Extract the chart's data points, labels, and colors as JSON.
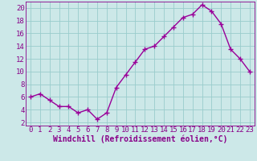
{
  "x": [
    0,
    1,
    2,
    3,
    4,
    5,
    6,
    7,
    8,
    9,
    10,
    11,
    12,
    13,
    14,
    15,
    16,
    17,
    18,
    19,
    20,
    21,
    22,
    23
  ],
  "y": [
    6.0,
    6.5,
    5.5,
    4.5,
    4.5,
    3.5,
    4.0,
    2.5,
    3.5,
    7.5,
    9.5,
    11.5,
    13.5,
    14.0,
    15.5,
    17.0,
    18.5,
    19.0,
    20.5,
    19.5,
    17.5,
    13.5,
    12.0,
    10.0
  ],
  "line_color": "#990099",
  "marker": "+",
  "background_color": "#cce8e8",
  "grid_color": "#99cccc",
  "xlabel": "Windchill (Refroidissement éolien,°C)",
  "ylim": [
    1.5,
    21.0
  ],
  "xlim": [
    -0.5,
    23.5
  ],
  "yticks": [
    2,
    4,
    6,
    8,
    10,
    12,
    14,
    16,
    18,
    20
  ],
  "xticks": [
    0,
    1,
    2,
    3,
    4,
    5,
    6,
    7,
    8,
    9,
    10,
    11,
    12,
    13,
    14,
    15,
    16,
    17,
    18,
    19,
    20,
    21,
    22,
    23
  ],
  "tick_color": "#880088",
  "label_color": "#880088",
  "font_size": 6.5,
  "xlabel_font_size": 7.0,
  "line_width": 1.0,
  "marker_size": 4,
  "marker_ew": 1.0
}
